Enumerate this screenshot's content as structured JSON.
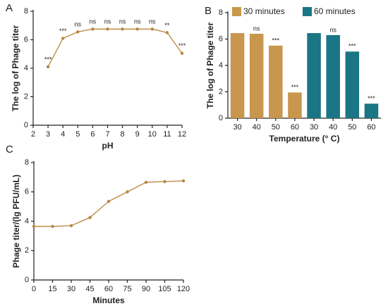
{
  "chart_data": [
    {
      "type": "line",
      "label": "A",
      "x_label": "pH",
      "y_label": "The log of Phage titer",
      "x": [
        3,
        4,
        5,
        6,
        7,
        8,
        9,
        10,
        11,
        12
      ],
      "values": [
        4.1,
        6.1,
        6.55,
        6.75,
        6.75,
        6.75,
        6.75,
        6.75,
        6.5,
        5.05
      ],
      "annotations": [
        "***",
        "***",
        "ns",
        "ns",
        "ns",
        "ns",
        "ns",
        "ns",
        "**",
        "***"
      ],
      "color": "#b8863f",
      "xlim": [
        2,
        12
      ],
      "xticks": [
        2,
        3,
        4,
        5,
        6,
        7,
        8,
        9,
        10,
        11,
        12
      ],
      "ylim": [
        0,
        8
      ],
      "yticks": [
        0,
        2,
        4,
        6,
        8
      ]
    },
    {
      "type": "bar",
      "label": "B",
      "x_label": "Temperature (° C)",
      "y_label": "The log of Phage titer",
      "categories": [
        "30",
        "40",
        "50",
        "60"
      ],
      "series": [
        {
          "name": "30 minutes",
          "color": "#c8964c",
          "values": [
            6.45,
            6.4,
            5.5,
            1.95
          ],
          "annotations": [
            null,
            "ns",
            "***",
            "***"
          ]
        },
        {
          "name": "60 minutes",
          "color": "#1a7585",
          "values": [
            6.45,
            6.3,
            5.05,
            1.1
          ],
          "annotations": [
            null,
            "ns",
            "***",
            "***"
          ]
        }
      ],
      "ylim": [
        0,
        8
      ],
      "yticks": [
        0,
        2,
        4,
        6,
        8
      ]
    },
    {
      "type": "line",
      "label": "C",
      "x_label": "Minutes",
      "y_label": "Phage titer/(lg PFU/mL)",
      "x": [
        0,
        15,
        30,
        45,
        60,
        75,
        90,
        105,
        120
      ],
      "values": [
        3.65,
        3.65,
        3.7,
        4.25,
        5.35,
        6.0,
        6.65,
        6.7,
        6.75
      ],
      "color": "#b8863f",
      "xlim": [
        0,
        120
      ],
      "xticks": [
        0,
        15,
        30,
        45,
        60,
        75,
        90,
        105,
        120
      ],
      "ylim": [
        0,
        8
      ],
      "yticks": [
        0,
        2,
        4,
        6,
        8
      ]
    }
  ]
}
